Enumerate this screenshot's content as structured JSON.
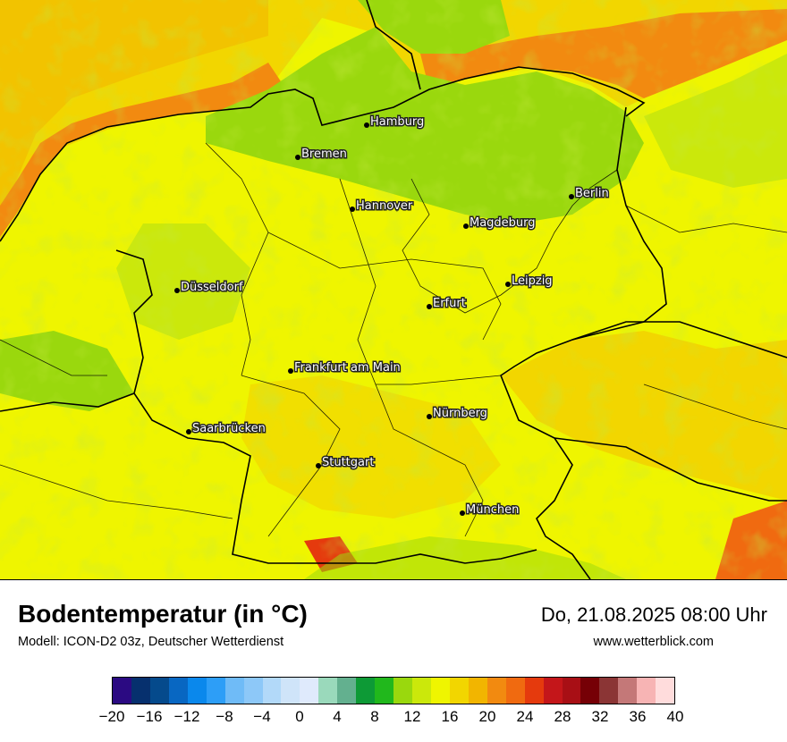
{
  "map": {
    "title": "Bodentemperatur (in °C)",
    "model": "Modell: ICON-D2 03z, Deutscher Wetterdienst",
    "datetime": "Do, 21.08.2025 08:00 Uhr",
    "website": "www.wetterblick.com",
    "cities": [
      {
        "name": "Hamburg"
      },
      {
        "name": "Bremen"
      },
      {
        "name": "Berlin"
      },
      {
        "name": "Hannover"
      },
      {
        "name": "Magdeburg"
      },
      {
        "name": "Düsseldorf"
      },
      {
        "name": "Leipzig"
      },
      {
        "name": "Erfurt"
      },
      {
        "name": "Frankfurt am Main"
      },
      {
        "name": "Nürnberg"
      },
      {
        "name": "Saarbrücken"
      },
      {
        "name": "Stuttgart"
      },
      {
        "name": "München"
      }
    ]
  },
  "legend": {
    "colors": [
      "#2b0a82",
      "#06306e",
      "#054a8c",
      "#0867c2",
      "#0a88ec",
      "#2d9ef7",
      "#6fbbf7",
      "#8dc8f8",
      "#b2d9f9",
      "#cfe4f9",
      "#dfeafc",
      "#9ad9bb",
      "#63b08f",
      "#0d9a36",
      "#21b81c",
      "#9ad80d",
      "#cbe80b",
      "#eff500",
      "#f2d600",
      "#f2b500",
      "#f28a10",
      "#f06a10",
      "#e53a0d",
      "#c4161a",
      "#a80f15",
      "#760006",
      "#8b3535",
      "#c47878",
      "#f7b4b4",
      "#ffdcdc"
    ],
    "ticks": [
      "−20",
      "−16",
      "−12",
      "−8",
      "−4",
      "0",
      "4",
      "8",
      "12",
      "16",
      "20",
      "24",
      "28",
      "32",
      "36",
      "40"
    ]
  }
}
